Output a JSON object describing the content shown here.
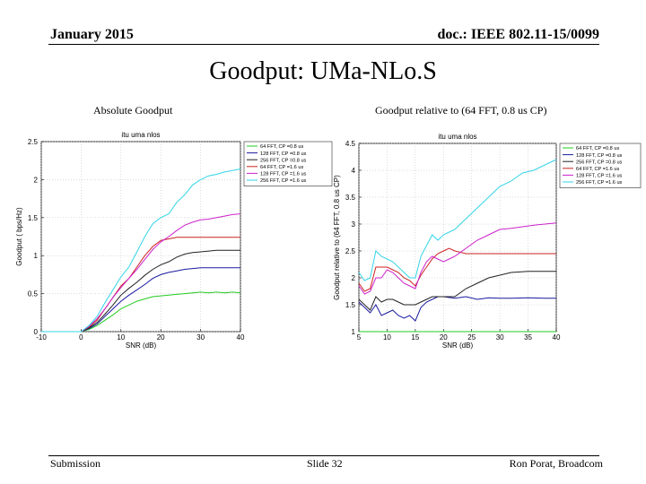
{
  "header": {
    "date": "January 2015",
    "doc": "doc.: IEEE 802.11-15/0099"
  },
  "slide_title": "Goodput: UMa-NLo.S",
  "subtitles": {
    "left": "Absolute Goodput",
    "right": "Goodput relative to (64 FFT, 0.8 us CP)"
  },
  "footer": {
    "left": "Submission",
    "center": "Slide 32",
    "right": "Ron Porat, Broadcom"
  },
  "chart_data": [
    {
      "type": "line",
      "title": "itu uma nlos",
      "xlabel": "SNR (dB)",
      "ylabel": "Goodput ( bps/Hz)",
      "xlim": [
        -10,
        40
      ],
      "ylim": [
        0,
        2.5
      ],
      "xticks": [
        -10,
        0,
        10,
        20,
        30,
        40
      ],
      "yticks": [
        0,
        0.5,
        1,
        1.5,
        2,
        2.5
      ],
      "grid": true,
      "legend": "right, outside plot",
      "series": [
        {
          "name": "64 FFT, CP =0.8 us",
          "color": "#22cc22",
          "x": [
            -10,
            0,
            2,
            4,
            6,
            8,
            10,
            12,
            14,
            16,
            18,
            20,
            22,
            24,
            26,
            28,
            30,
            32,
            34,
            36,
            38,
            40
          ],
          "y": [
            0,
            0,
            0.03,
            0.08,
            0.15,
            0.22,
            0.3,
            0.35,
            0.4,
            0.43,
            0.46,
            0.47,
            0.48,
            0.49,
            0.5,
            0.51,
            0.52,
            0.51,
            0.52,
            0.51,
            0.52,
            0.51
          ]
        },
        {
          "name": "128 FFT, CP =0.8 us",
          "color": "#1a1aa0",
          "x": [
            -10,
            0,
            2,
            4,
            6,
            8,
            10,
            12,
            14,
            16,
            18,
            20,
            22,
            24,
            26,
            28,
            30,
            32,
            34,
            36,
            38,
            40
          ],
          "y": [
            0,
            0,
            0.04,
            0.1,
            0.2,
            0.3,
            0.4,
            0.48,
            0.55,
            0.62,
            0.7,
            0.75,
            0.78,
            0.8,
            0.82,
            0.83,
            0.84,
            0.84,
            0.84,
            0.84,
            0.84,
            0.84
          ]
        },
        {
          "name": "256 FFT, CP =0.8 us",
          "color": "#222222",
          "x": [
            -10,
            0,
            2,
            4,
            6,
            8,
            10,
            12,
            14,
            16,
            18,
            20,
            22,
            24,
            26,
            28,
            30,
            32,
            34,
            36,
            38,
            40
          ],
          "y": [
            0,
            0,
            0.05,
            0.12,
            0.23,
            0.35,
            0.48,
            0.57,
            0.65,
            0.74,
            0.82,
            0.88,
            0.92,
            0.98,
            1.02,
            1.04,
            1.05,
            1.06,
            1.07,
            1.07,
            1.07,
            1.07
          ]
        },
        {
          "name": "64 FFT, CP =1.6 us",
          "color": "#cc2222",
          "x": [
            -10,
            0,
            2,
            4,
            6,
            8,
            10,
            12,
            14,
            16,
            18,
            20,
            22,
            24,
            26,
            28,
            30,
            32,
            34,
            36,
            38,
            40
          ],
          "y": [
            0,
            0,
            0.06,
            0.15,
            0.3,
            0.45,
            0.6,
            0.7,
            0.85,
            1.0,
            1.12,
            1.2,
            1.22,
            1.24,
            1.24,
            1.24,
            1.24,
            1.24,
            1.24,
            1.24,
            1.24,
            1.24
          ]
        },
        {
          "name": "128 FFT, CP =1.6 us",
          "color": "#cc22cc",
          "x": [
            -10,
            0,
            2,
            4,
            6,
            8,
            10,
            12,
            14,
            16,
            18,
            20,
            22,
            24,
            26,
            28,
            30,
            32,
            34,
            36,
            38,
            40
          ],
          "y": [
            0,
            0,
            0.07,
            0.17,
            0.3,
            0.45,
            0.58,
            0.7,
            0.82,
            0.95,
            1.08,
            1.18,
            1.25,
            1.33,
            1.4,
            1.44,
            1.47,
            1.48,
            1.5,
            1.52,
            1.54,
            1.55
          ]
        },
        {
          "name": "256 FFT, CP =1.6 us",
          "color": "#33d4e6",
          "x": [
            -10,
            0,
            2,
            4,
            6,
            8,
            10,
            12,
            14,
            16,
            18,
            20,
            22,
            24,
            26,
            28,
            30,
            32,
            34,
            36,
            38,
            40
          ],
          "y": [
            0,
            0,
            0.08,
            0.2,
            0.38,
            0.55,
            0.72,
            0.85,
            1.05,
            1.25,
            1.42,
            1.5,
            1.55,
            1.7,
            1.8,
            1.93,
            2.0,
            2.05,
            2.07,
            2.1,
            2.12,
            2.14
          ]
        }
      ]
    },
    {
      "type": "line",
      "title": "itu uma nlos",
      "xlabel": "SNR (dB)",
      "ylabel": "Goodput relative to (64 FFT, 0.8 us CP)",
      "xlim": [
        5,
        40
      ],
      "ylim": [
        1,
        4.5
      ],
      "xticks": [
        5,
        10,
        15,
        20,
        25,
        30,
        35,
        40
      ],
      "yticks": [
        1,
        1.5,
        2,
        2.5,
        3,
        3.5,
        4,
        4.5
      ],
      "grid": true,
      "legend": "right, outside plot",
      "series": [
        {
          "name": "64 FFT, CP =0.8 us",
          "color": "#22cc22",
          "x": [
            5,
            40
          ],
          "y": [
            1.0,
            1.0
          ]
        },
        {
          "name": "128 FFT, CP =0.8 us",
          "color": "#1a1aa0",
          "x": [
            5,
            6,
            7,
            8,
            9,
            10,
            11,
            12,
            13,
            14,
            15,
            16,
            17,
            18,
            19,
            20,
            22,
            24,
            26,
            28,
            30,
            32,
            35,
            38,
            40
          ],
          "y": [
            1.55,
            1.45,
            1.35,
            1.5,
            1.3,
            1.35,
            1.4,
            1.3,
            1.25,
            1.3,
            1.2,
            1.45,
            1.55,
            1.6,
            1.65,
            1.65,
            1.62,
            1.65,
            1.6,
            1.63,
            1.62,
            1.62,
            1.63,
            1.62,
            1.62
          ]
        },
        {
          "name": "256 FFT, CP =0.8 us",
          "color": "#222222",
          "x": [
            5,
            6,
            7,
            8,
            9,
            10,
            11,
            12,
            13,
            14,
            15,
            16,
            17,
            18,
            19,
            20,
            22,
            24,
            26,
            28,
            30,
            32,
            35,
            38,
            40
          ],
          "y": [
            1.6,
            1.5,
            1.4,
            1.65,
            1.55,
            1.6,
            1.6,
            1.55,
            1.5,
            1.5,
            1.5,
            1.55,
            1.6,
            1.65,
            1.65,
            1.65,
            1.65,
            1.8,
            1.9,
            2.0,
            2.05,
            2.1,
            2.12,
            2.12,
            2.12
          ]
        },
        {
          "name": "64 FFT, CP =1.6 us",
          "color": "#cc2222",
          "x": [
            5,
            6,
            7,
            8,
            9,
            10,
            11,
            12,
            13,
            14,
            15,
            16,
            17,
            18,
            19,
            20,
            21,
            22,
            24,
            26,
            28,
            30,
            32,
            35,
            38,
            40
          ],
          "y": [
            1.9,
            1.75,
            1.8,
            2.2,
            2.2,
            2.2,
            2.15,
            2.1,
            2.0,
            1.95,
            1.85,
            2.05,
            2.2,
            2.35,
            2.45,
            2.5,
            2.55,
            2.5,
            2.45,
            2.45,
            2.45,
            2.45,
            2.45,
            2.45,
            2.45,
            2.45
          ]
        },
        {
          "name": "128 FFT, CP =1.6 us",
          "color": "#cc22cc",
          "x": [
            5,
            6,
            7,
            8,
            9,
            10,
            11,
            12,
            13,
            14,
            15,
            16,
            17,
            18,
            19,
            20,
            21,
            22,
            24,
            26,
            28,
            30,
            32,
            34,
            36,
            38,
            40
          ],
          "y": [
            1.85,
            1.7,
            1.75,
            2.0,
            2.0,
            2.15,
            2.1,
            2.0,
            1.9,
            1.85,
            1.8,
            2.1,
            2.3,
            2.4,
            2.35,
            2.3,
            2.35,
            2.4,
            2.55,
            2.7,
            2.8,
            2.9,
            2.92,
            2.95,
            2.98,
            3.0,
            3.02
          ]
        },
        {
          "name": "256 FFT, CP =1.6 us",
          "color": "#33d4e6",
          "x": [
            5,
            6,
            7,
            8,
            9,
            10,
            11,
            12,
            13,
            14,
            15,
            16,
            17,
            18,
            19,
            20,
            21,
            22,
            23,
            24,
            26,
            28,
            30,
            32,
            34,
            36,
            38,
            40
          ],
          "y": [
            2.1,
            1.95,
            2.0,
            2.5,
            2.4,
            2.35,
            2.3,
            2.2,
            2.1,
            2.0,
            2.0,
            2.4,
            2.6,
            2.8,
            2.7,
            2.8,
            2.85,
            2.9,
            3.0,
            3.1,
            3.3,
            3.5,
            3.7,
            3.8,
            3.95,
            4.0,
            4.1,
            4.2
          ]
        }
      ]
    }
  ]
}
